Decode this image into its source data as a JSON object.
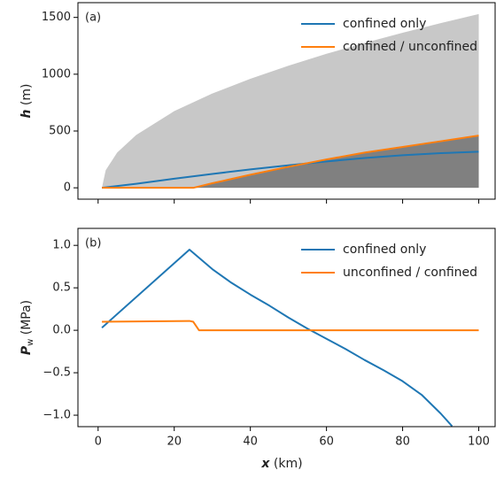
{
  "chart_data": [
    {
      "type": "line",
      "annotation": "(a)",
      "ylabel_symbol": "h",
      "ylabel_unit": "(m)",
      "xlim": [
        -5.3,
        104.3
      ],
      "ylim": [
        -100,
        1630
      ],
      "xticks": [
        0,
        20,
        40,
        60,
        80,
        100
      ],
      "xtick_labels": false,
      "yticks": [
        0,
        500,
        1000,
        1500
      ],
      "legend": "upper right",
      "areas": [
        {
          "color": "#c8c8c8",
          "x": [
            1,
            2,
            5,
            10,
            20,
            30,
            40,
            50,
            60,
            70,
            80,
            90,
            100
          ],
          "values": [
            0,
            155,
            310,
            465,
            675,
            830,
            960,
            1075,
            1180,
            1275,
            1365,
            1450,
            1530
          ]
        }
      ],
      "series": [
        {
          "name": "confined only",
          "color": "#1f77b4",
          "x": [
            1,
            10,
            20,
            30,
            40,
            50,
            60,
            70,
            80,
            90,
            100
          ],
          "values": [
            0,
            35,
            80,
            122,
            162,
            198,
            232,
            262,
            287,
            305,
            318
          ]
        },
        {
          "name": "confined / unconfined",
          "color": "#ff7f0e",
          "fill": "#808080",
          "x": [
            1,
            25,
            30,
            40,
            50,
            60,
            70,
            80,
            90,
            100
          ],
          "values": [
            0,
            0,
            40,
            115,
            185,
            250,
            310,
            360,
            410,
            460
          ]
        }
      ]
    },
    {
      "type": "line",
      "annotation": "(b)",
      "ylabel_symbol": "P",
      "ylabel_subscript": "w",
      "ylabel_unit": "(MPa)",
      "xlabel_symbol": "x",
      "xlabel_unit": "(km)",
      "xlim": [
        -5.3,
        104.3
      ],
      "ylim": [
        -1.135,
        1.2
      ],
      "xticks": [
        0,
        20,
        40,
        60,
        80,
        100
      ],
      "yticks": [
        {
          "value": 1,
          "label": "1.0"
        },
        0.5,
        {
          "value": 0,
          "label": "0.0"
        },
        {
          "value": -0.5,
          "label": "−0.5"
        },
        {
          "value": -1,
          "label": "−1.0"
        }
      ],
      "legend": "upper right",
      "series": [
        {
          "name": "confined only",
          "color": "#1f77b4",
          "x": [
            1,
            24,
            30,
            35,
            40,
            45,
            50,
            55,
            60,
            65,
            70,
            75,
            80,
            85,
            90,
            93
          ],
          "values": [
            0.03,
            0.95,
            0.72,
            0.56,
            0.42,
            0.29,
            0.15,
            0.02,
            -0.1,
            -0.22,
            -0.35,
            -0.47,
            -0.6,
            -0.76,
            -0.98,
            -1.13
          ]
        },
        {
          "name": "unconfined / confined",
          "color": "#ff7f0e",
          "x": [
            1,
            24,
            25,
            26.5,
            40,
            60,
            80,
            100
          ],
          "values": [
            0.1,
            0.11,
            0.1,
            0,
            0,
            0,
            0,
            0
          ]
        }
      ]
    }
  ]
}
